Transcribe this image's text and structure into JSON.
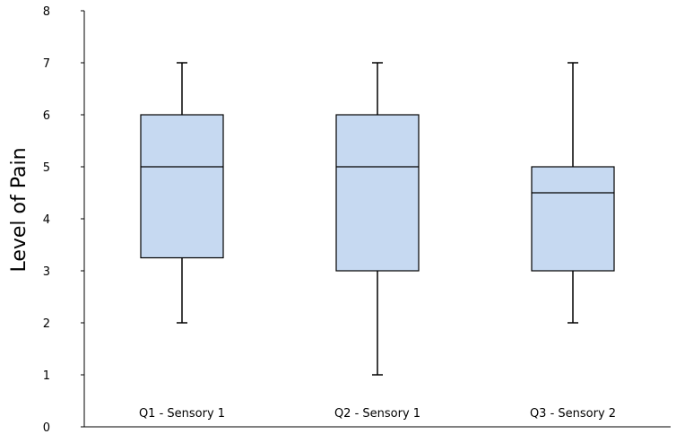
{
  "chart_data": {
    "type": "box",
    "title": "",
    "xlabel": "",
    "ylabel": "Level of Pain",
    "ylim": [
      0,
      8
    ],
    "yticks": [
      "0",
      "1",
      "2",
      "3",
      "4",
      "5",
      "6",
      "7",
      "8"
    ],
    "grid": false,
    "legend": "none",
    "box_fill": "#c6d9f1",
    "box_stroke": "#000000",
    "categories": [
      "Q1 - Sensory 1",
      "Q2 - Sensory 1",
      "Q3 - Sensory 2"
    ],
    "boxes": [
      {
        "category": "Q1 - Sensory 1",
        "min": 2,
        "q1": 3.25,
        "median": 5,
        "q3": 6,
        "max": 7
      },
      {
        "category": "Q2 - Sensory 1",
        "min": 1,
        "q1": 3,
        "median": 5,
        "q3": 6,
        "max": 7
      },
      {
        "category": "Q3 - Sensory 2",
        "min": 2,
        "q1": 3,
        "median": 4.5,
        "q3": 5,
        "max": 7
      }
    ]
  }
}
